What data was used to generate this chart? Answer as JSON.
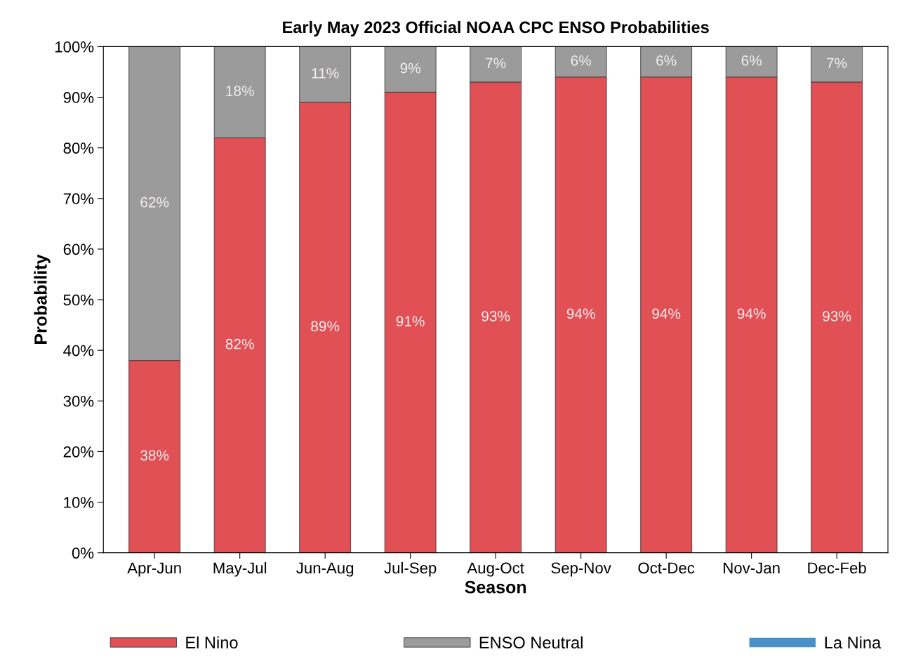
{
  "chart_data": {
    "type": "bar",
    "title": "Early May 2023 Official NOAA CPC ENSO Probabilities",
    "xlabel": "Season",
    "ylabel": "Probability",
    "categories": [
      "Apr-Jun",
      "May-Jul",
      "Jun-Aug",
      "Jul-Sep",
      "Aug-Oct",
      "Sep-Nov",
      "Oct-Dec",
      "Nov-Jan",
      "Dec-Feb"
    ],
    "stacked": true,
    "legend": "bottom",
    "grid": false,
    "ylim": [
      0,
      100
    ],
    "yticks": [
      {
        "value": 0,
        "label": "0%"
      },
      {
        "value": 10,
        "label": "10%"
      },
      {
        "value": 20,
        "label": "20%"
      },
      {
        "value": 30,
        "label": "30%"
      },
      {
        "value": 40,
        "label": "40%"
      },
      {
        "value": 50,
        "label": "50%"
      },
      {
        "value": 60,
        "label": "60%"
      },
      {
        "value": 70,
        "label": "70%"
      },
      {
        "value": 80,
        "label": "80%"
      },
      {
        "value": 90,
        "label": "90%"
      },
      {
        "value": 100,
        "label": "100%"
      }
    ],
    "series": [
      {
        "name": "El Nino",
        "color": "#e05055",
        "values": [
          38,
          82,
          89,
          91,
          93,
          94,
          94,
          94,
          93
        ],
        "value_labels": [
          "38%",
          "82%",
          "89%",
          "91%",
          "93%",
          "94%",
          "94%",
          "94%",
          "93%"
        ]
      },
      {
        "name": "ENSO Neutral",
        "color": "#9b9b9b",
        "values": [
          62,
          18,
          11,
          9,
          7,
          6,
          6,
          6,
          7
        ],
        "value_labels": [
          "62%",
          "18%",
          "11%",
          "9%",
          "7%",
          "6%",
          "6%",
          "6%",
          "7%"
        ]
      },
      {
        "name": "La Nina",
        "color": "#4a90c8",
        "values": [
          0,
          0,
          0,
          0,
          0,
          0,
          0,
          0,
          0
        ],
        "value_labels": [
          null,
          null,
          null,
          null,
          null,
          null,
          null,
          null,
          null
        ]
      }
    ]
  }
}
